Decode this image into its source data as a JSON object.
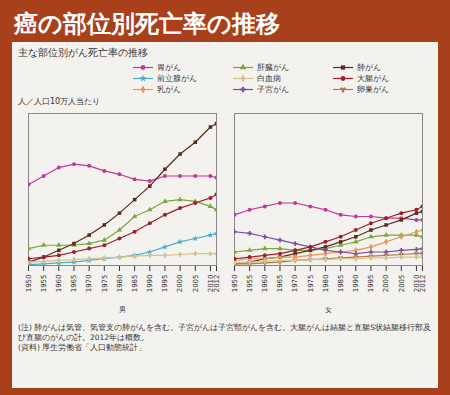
{
  "slide_title": "癌の部位別死亡率の推移",
  "note": "(注) 肺がんは気管、気管支の肺がんを含む。子宮がんは子宮頸がんを含む。大腸がんは結腸と直腸S状結腸移行部及び直腸のがんの計。2012年は概数。",
  "source": "(資料) 厚生労働省「人口動態統計」",
  "chart_data": [
    {
      "type": "line",
      "title": "主な部位別がん死亡率の推移",
      "y_label": "人／人口10万人当たり",
      "x_label": "男",
      "x": [
        1950,
        1955,
        1960,
        1965,
        1970,
        1975,
        1980,
        1985,
        1990,
        1995,
        2000,
        2005,
        2010,
        2012
      ],
      "xlim": [
        1950,
        2012
      ],
      "xticks": [
        1950,
        1955,
        1960,
        1965,
        1970,
        1975,
        1980,
        1985,
        1990,
        1995,
        2000,
        2005,
        2010,
        2012
      ],
      "ylim": [
        0,
        90
      ],
      "tick_labels": "x",
      "grid": false,
      "legend": "upper right",
      "series": [
        {
          "name": "胃がん",
          "color": "#c0399a",
          "marker": "circle",
          "values": [
            48,
            53,
            58,
            60,
            59,
            56,
            54,
            51,
            50,
            53,
            53,
            53,
            53,
            52
          ]
        },
        {
          "name": "肝臓がん",
          "color": "#7aa83a",
          "marker": "triangle",
          "values": [
            10,
            12,
            12,
            12,
            13,
            15,
            21,
            29,
            33,
            38,
            39,
            38,
            35,
            33
          ]
        },
        {
          "name": "肺がん",
          "color": "#5c2a1e",
          "marker": "square",
          "values": [
            2,
            5,
            9,
            13,
            18,
            24,
            31,
            39,
            47,
            57,
            66,
            73,
            82,
            84
          ]
        },
        {
          "name": "前立腺がん",
          "color": "#4aaed0",
          "marker": "star",
          "values": [
            0.5,
            1,
            1.5,
            2,
            3,
            4,
            5,
            6,
            8,
            11,
            14,
            16,
            18,
            19
          ]
        },
        {
          "name": "白血病",
          "color": "#d4c38a",
          "marker": "diamond",
          "values": [
            2,
            2.5,
            3,
            3.5,
            4,
            4.5,
            5,
            5.5,
            6,
            6,
            6.5,
            7,
            7,
            7
          ]
        },
        {
          "name": "大腸がん",
          "color": "#9e1f2b",
          "marker": "circle",
          "values": [
            4,
            5,
            6,
            8,
            10,
            12,
            16,
            20,
            25,
            30,
            34,
            37,
            40,
            42
          ]
        }
      ]
    },
    {
      "type": "line",
      "x_label": "女",
      "x": [
        1950,
        1955,
        1960,
        1965,
        1970,
        1975,
        1980,
        1985,
        1990,
        1995,
        2000,
        2005,
        2010,
        2012
      ],
      "xlim": [
        1950,
        2012
      ],
      "xticks": [
        1950,
        1955,
        1960,
        1965,
        1970,
        1975,
        1980,
        1985,
        1990,
        1995,
        2000,
        2005,
        2010,
        2012
      ],
      "ylim": [
        0,
        90
      ],
      "tick_labels": "x",
      "grid": false,
      "series": [
        {
          "name": "胃がん",
          "color": "#c0399a",
          "marker": "circle",
          "values": [
            30,
            33,
            35,
            37,
            37,
            35,
            33,
            30,
            29,
            29,
            28,
            28,
            27,
            27
          ]
        },
        {
          "name": "肝臓がん",
          "color": "#7aa83a",
          "marker": "triangle",
          "values": [
            8,
            9,
            10,
            10,
            9,
            9,
            10,
            12,
            14,
            17,
            18,
            18,
            18,
            17
          ]
        },
        {
          "name": "肺がん",
          "color": "#5c2a1e",
          "marker": "square",
          "values": [
            1,
            2,
            4,
            5,
            7,
            9,
            11,
            14,
            17,
            21,
            24,
            27,
            31,
            32
          ]
        },
        {
          "name": "乳がん",
          "color": "#e8955a",
          "marker": "diamond",
          "values": [
            3,
            4,
            4,
            5,
            5,
            6,
            7,
            8,
            9,
            11,
            14,
            17,
            20,
            21
          ]
        },
        {
          "name": "子宮がん",
          "color": "#7b4fa0",
          "marker": "cross",
          "values": [
            20,
            19,
            17,
            15,
            13,
            11,
            9,
            8,
            7,
            8,
            8,
            9,
            9.5,
            10
          ]
        },
        {
          "name": "卵巣がん",
          "color": "#b07a50",
          "marker": "wye",
          "values": [
            1,
            1,
            1.5,
            2,
            3,
            3.5,
            4,
            4.5,
            5,
            5.5,
            6,
            6.5,
            7,
            7
          ]
        },
        {
          "name": "白血病",
          "color": "#d4c38a",
          "marker": "diamond",
          "values": [
            1.5,
            2,
            2.5,
            3,
            3,
            3.5,
            3.5,
            4,
            4,
            4.5,
            4.5,
            5,
            5,
            5
          ]
        },
        {
          "name": "大腸がん",
          "color": "#9e1f2b",
          "marker": "circle",
          "values": [
            4,
            5,
            6,
            7,
            9,
            11,
            14,
            17,
            21,
            25,
            28,
            31,
            33,
            35
          ]
        }
      ]
    }
  ]
}
